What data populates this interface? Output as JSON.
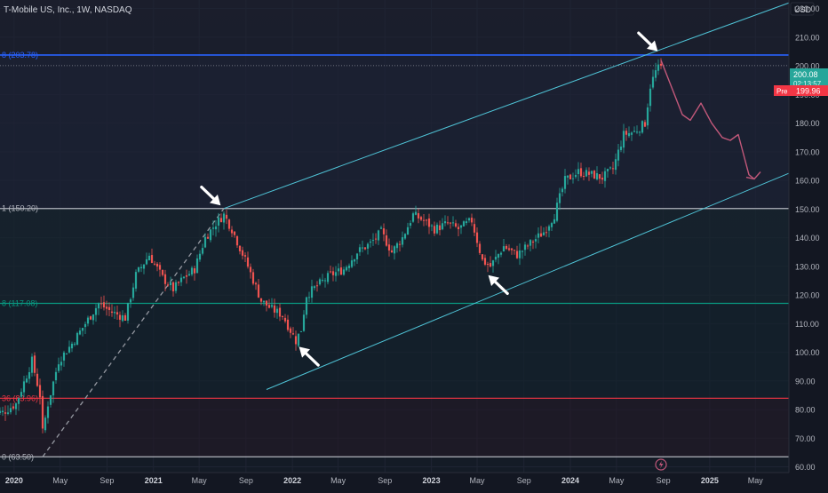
{
  "header": {
    "symbol_line": "T-Mobile US, Inc., 1W, NASDAQ"
  },
  "price_scale": {
    "currency": "USD",
    "tick_labels": [
      "220.00",
      "210.00",
      "200.00",
      "190.00",
      "180.00",
      "170.00",
      "160.00",
      "150.00",
      "140.00",
      "130.00",
      "120.00",
      "110.00",
      "100.00",
      "90.00",
      "80.00",
      "70.00",
      "60.00"
    ]
  },
  "last_price": {
    "value": "200.08",
    "countdown": "02:13:57",
    "color": "#26a69a"
  },
  "pre_market": {
    "label": "Pre",
    "value": "199.96",
    "color": "#f23645"
  },
  "time_axis": {
    "labels": [
      "2020",
      "May",
      "Sep",
      "2021",
      "May",
      "Sep",
      "2022",
      "May",
      "Sep",
      "2023",
      "May",
      "Sep",
      "2024",
      "May",
      "Sep",
      "2025",
      "May"
    ]
  },
  "fib_levels": [
    {
      "label": "8 (203.78)",
      "value": 203.78,
      "color": "#2962ff"
    },
    {
      "label": "1 (150.20)",
      "value": 150.2,
      "color": "#b2b5be"
    },
    {
      "label": "8 (117.08)",
      "value": 117.08,
      "color": "#089981"
    },
    {
      "label": "36 (83.96)",
      "value": 83.96,
      "color": "#f23645"
    },
    {
      "label": "0 (63.50)",
      "value": 63.5,
      "color": "#b2b5be"
    }
  ],
  "chart_data": {
    "type": "candlestick",
    "title": "T-Mobile US, Inc., 1W, NASDAQ",
    "timeframe": "1W",
    "exchange": "NASDAQ",
    "ylim": [
      58,
      223
    ],
    "xlim": [
      "2019-11-25",
      "2025-07-28"
    ],
    "colors": {
      "up": "#26a69a",
      "down": "#ef5350",
      "channel": "#4fc3d6",
      "projection": "#c2587a"
    },
    "closes": [
      {
        "date": "2019-12-02",
        "close": 79
      },
      {
        "date": "2020-01-06",
        "close": 82
      },
      {
        "date": "2020-02-03",
        "close": 92
      },
      {
        "date": "2020-02-17",
        "close": 97
      },
      {
        "date": "2020-03-09",
        "close": 85
      },
      {
        "date": "2020-03-16",
        "close": 72
      },
      {
        "date": "2020-03-30",
        "close": 82
      },
      {
        "date": "2020-04-27",
        "close": 97
      },
      {
        "date": "2020-06-01",
        "close": 103
      },
      {
        "date": "2020-07-06",
        "close": 110
      },
      {
        "date": "2020-08-10",
        "close": 117
      },
      {
        "date": "2020-09-14",
        "close": 114
      },
      {
        "date": "2020-10-19",
        "close": 112
      },
      {
        "date": "2020-11-16",
        "close": 127
      },
      {
        "date": "2020-12-21",
        "close": 134
      },
      {
        "date": "2021-01-25",
        "close": 126
      },
      {
        "date": "2021-02-22",
        "close": 122
      },
      {
        "date": "2021-03-22",
        "close": 126
      },
      {
        "date": "2021-04-19",
        "close": 129
      },
      {
        "date": "2021-05-17",
        "close": 140
      },
      {
        "date": "2021-06-14",
        "close": 145
      },
      {
        "date": "2021-07-05",
        "close": 148
      },
      {
        "date": "2021-07-26",
        "close": 143
      },
      {
        "date": "2021-09-06",
        "close": 130
      },
      {
        "date": "2021-10-11",
        "close": 118
      },
      {
        "date": "2021-11-08",
        "close": 115
      },
      {
        "date": "2021-12-06",
        "close": 113
      },
      {
        "date": "2022-01-10",
        "close": 104
      },
      {
        "date": "2022-01-24",
        "close": 108
      },
      {
        "date": "2022-02-07",
        "close": 120
      },
      {
        "date": "2022-03-14",
        "close": 124
      },
      {
        "date": "2022-04-11",
        "close": 127
      },
      {
        "date": "2022-05-16",
        "close": 129
      },
      {
        "date": "2022-06-20",
        "close": 135
      },
      {
        "date": "2022-07-25",
        "close": 138
      },
      {
        "date": "2022-08-22",
        "close": 142
      },
      {
        "date": "2022-09-19",
        "close": 135
      },
      {
        "date": "2022-10-17",
        "close": 140
      },
      {
        "date": "2022-11-14",
        "close": 148
      },
      {
        "date": "2022-12-12",
        "close": 146
      },
      {
        "date": "2023-01-09",
        "close": 143
      },
      {
        "date": "2023-02-13",
        "close": 145
      },
      {
        "date": "2023-03-13",
        "close": 143
      },
      {
        "date": "2023-04-17",
        "close": 146
      },
      {
        "date": "2023-05-15",
        "close": 132
      },
      {
        "date": "2023-06-05",
        "close": 130
      },
      {
        "date": "2023-07-10",
        "close": 137
      },
      {
        "date": "2023-08-14",
        "close": 134
      },
      {
        "date": "2023-09-18",
        "close": 138
      },
      {
        "date": "2023-10-23",
        "close": 142
      },
      {
        "date": "2023-11-20",
        "close": 148
      },
      {
        "date": "2023-12-18",
        "close": 160
      },
      {
        "date": "2024-01-22",
        "close": 163
      },
      {
        "date": "2024-02-26",
        "close": 162
      },
      {
        "date": "2024-03-25",
        "close": 161
      },
      {
        "date": "2024-04-22",
        "close": 164
      },
      {
        "date": "2024-05-20",
        "close": 176
      },
      {
        "date": "2024-06-17",
        "close": 177
      },
      {
        "date": "2024-07-15",
        "close": 180
      },
      {
        "date": "2024-07-29",
        "close": 193
      },
      {
        "date": "2024-08-12",
        "close": 198
      },
      {
        "date": "2024-08-26",
        "close": 200.08
      }
    ],
    "channel": {
      "upper": [
        [
          "2021-07-05",
          150.2
        ],
        [
          "2025-07-28",
          222
        ]
      ],
      "lower": [
        [
          "2021-10-25",
          87
        ],
        [
          "2025-07-28",
          162.5
        ]
      ]
    },
    "dashed_trend": [
      [
        "2020-03-16",
        63.5
      ],
      [
        "2021-07-05",
        150.2
      ]
    ],
    "projection_path": [
      [
        "2024-08-26",
        202
      ],
      [
        "2024-10-21",
        183
      ],
      [
        "2024-11-11",
        181
      ],
      [
        "2024-12-09",
        187
      ],
      [
        "2025-01-06",
        180
      ],
      [
        "2025-02-03",
        175
      ],
      [
        "2025-02-24",
        174
      ],
      [
        "2025-03-17",
        176
      ],
      [
        "2025-04-14",
        162
      ],
      [
        "2025-04-28",
        160.5
      ]
    ],
    "arrows_at": [
      {
        "date": "2021-07-05",
        "value": 150.2,
        "direction": "down-right"
      },
      {
        "date": "2022-01-10",
        "value": 103,
        "direction": "up-left"
      },
      {
        "date": "2023-05-22",
        "value": 128,
        "direction": "up-left"
      },
      {
        "date": "2024-08-26",
        "value": 204,
        "direction": "down-right"
      }
    ]
  }
}
